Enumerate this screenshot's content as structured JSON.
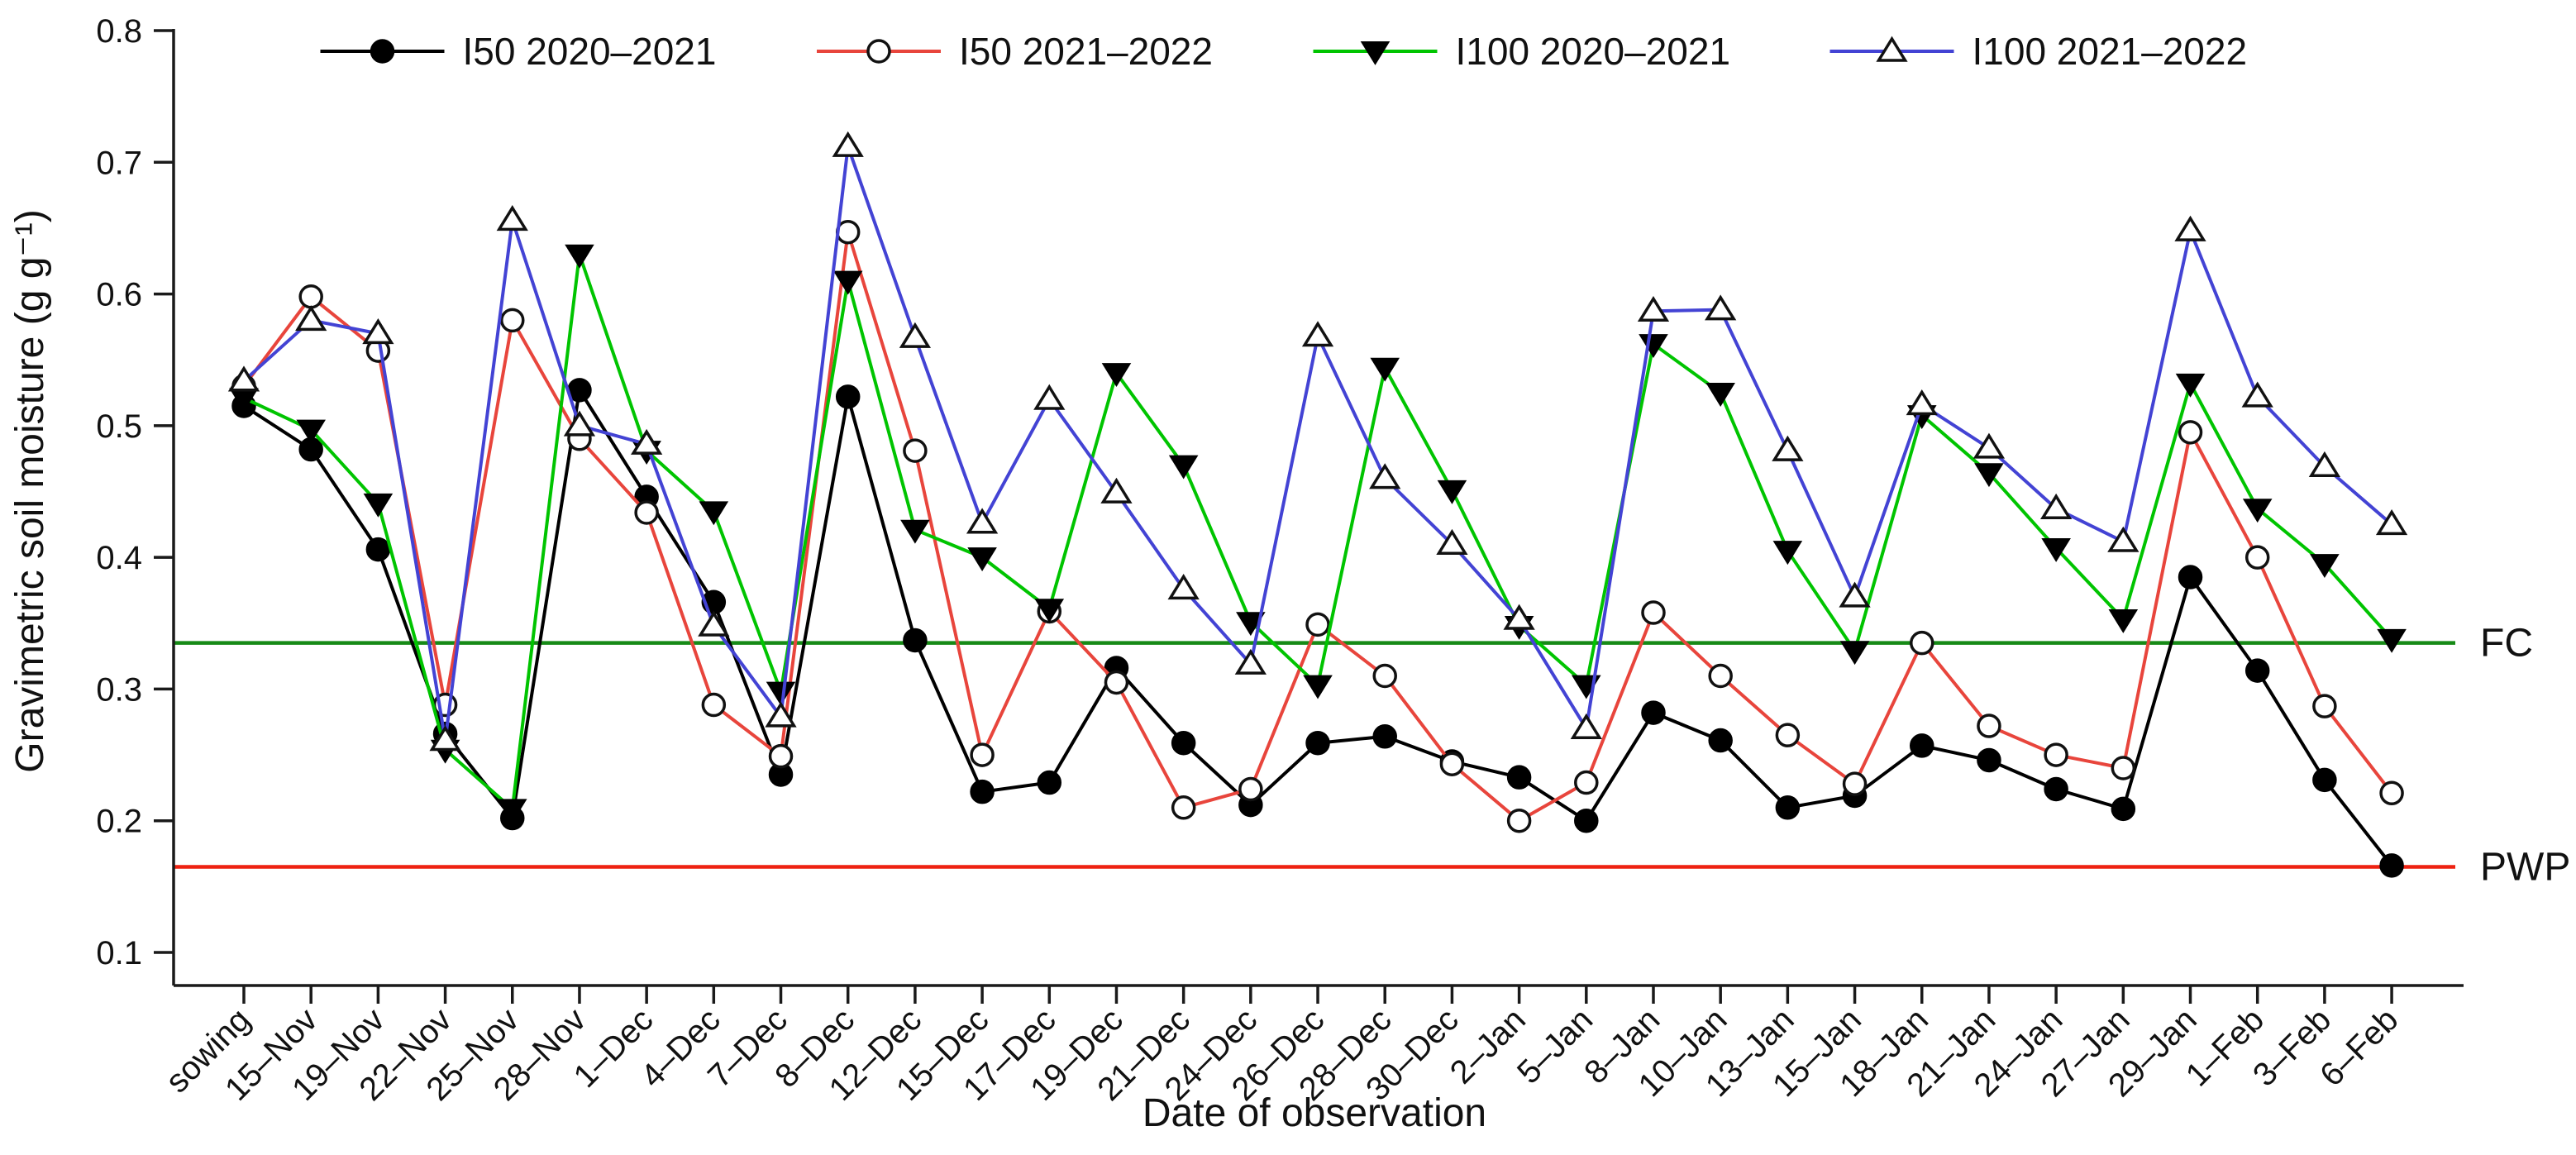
{
  "chart_data": {
    "type": "line",
    "title": "",
    "xlabel": "Date of observation",
    "ylabel": "Gravimetric soil moisture (g g⁻¹)",
    "ylim": [
      0.1,
      0.8
    ],
    "yticks": [
      "0.1",
      "0.2",
      "0.3",
      "0.4",
      "0.5",
      "0.6",
      "0.7",
      "0.8"
    ],
    "grid": false,
    "legend_position": "top-center",
    "categories": [
      "sowing",
      "15–Nov",
      "19–Nov",
      "22–Nov",
      "25–Nov",
      "28–Nov",
      "1–Dec",
      "4–Dec",
      "7–Dec",
      "8–Dec",
      "12–Dec",
      "15–Dec",
      "17–Dec",
      "19–Dec",
      "21–Dec",
      "24–Dec",
      "26–Dec",
      "28–Dec",
      "30–Dec",
      "2–Jan",
      "5–Jan",
      "8–Jan",
      "10–Jan",
      "13–Jan",
      "15–Jan",
      "18–Jan",
      "21–Jan",
      "24–Jan",
      "27–Jan",
      "29–Jan",
      "1–Feb",
      "3–Feb",
      "6–Feb"
    ],
    "series": [
      {
        "name": "I50 2020–2021",
        "color": "#000000",
        "marker": "filled-circle",
        "values": [
          0.515,
          0.482,
          0.406,
          0.266,
          0.202,
          0.527,
          0.446,
          0.366,
          0.235,
          0.522,
          0.337,
          0.222,
          0.229,
          0.316,
          0.259,
          0.212,
          0.259,
          0.264,
          0.245,
          0.233,
          0.2,
          0.282,
          0.261,
          0.21,
          0.219,
          0.257,
          0.246,
          0.224,
          0.209,
          0.385,
          0.314,
          0.231,
          0.166
        ]
      },
      {
        "name": "I50 2021–2022",
        "color": "#e8453c",
        "marker": "open-circle",
        "values": [
          0.53,
          0.598,
          0.557,
          0.288,
          0.58,
          0.49,
          0.434,
          0.288,
          0.249,
          0.647,
          0.481,
          0.25,
          0.359,
          0.305,
          0.21,
          0.224,
          0.349,
          0.31,
          0.243,
          0.2,
          0.229,
          0.358,
          0.31,
          0.265,
          0.228,
          0.335,
          0.272,
          0.25,
          0.24,
          0.495,
          0.4,
          0.287,
          0.221
        ]
      },
      {
        "name": "I100 2020–2021",
        "color": "#00c400",
        "marker": "filled-triangle-down",
        "marker_color": "#000000",
        "values": [
          0.521,
          0.497,
          0.441,
          0.254,
          0.209,
          0.63,
          0.481,
          0.435,
          0.298,
          0.61,
          0.421,
          0.4,
          0.361,
          0.54,
          0.47,
          0.351,
          0.303,
          0.544,
          0.451,
          0.348,
          0.303,
          0.562,
          0.525,
          0.405,
          0.329,
          0.508,
          0.464,
          0.407,
          0.353,
          0.532,
          0.437,
          0.395,
          0.338
        ]
      },
      {
        "name": "I100 2021–2022",
        "color": "#4343d4",
        "marker": "open-triangle-up",
        "values": [
          0.534,
          0.58,
          0.57,
          0.261,
          0.656,
          0.5,
          0.486,
          0.348,
          0.279,
          0.712,
          0.567,
          0.426,
          0.52,
          0.449,
          0.376,
          0.319,
          0.568,
          0.46,
          0.41,
          0.353,
          0.27,
          0.587,
          0.588,
          0.481,
          0.37,
          0.516,
          0.483,
          0.437,
          0.412,
          0.648,
          0.522,
          0.469,
          0.425
        ]
      }
    ],
    "reference_lines": [
      {
        "label": "FC",
        "value": 0.335,
        "color": "#168a16"
      },
      {
        "label": "PWP",
        "value": 0.165,
        "color": "#ee2211"
      }
    ]
  }
}
